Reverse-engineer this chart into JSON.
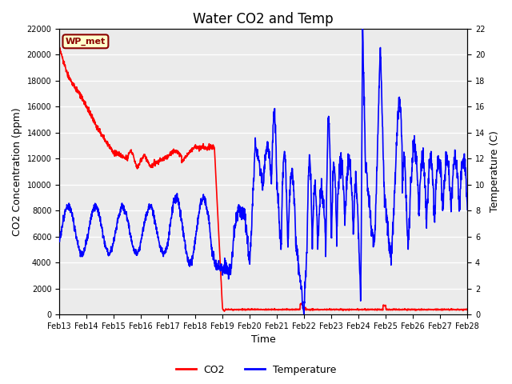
{
  "title": "Water CO2 and Temp",
  "xlabel": "Time",
  "ylabel_left": "CO2 Concentration (ppm)",
  "ylabel_right": "Temperature (C)",
  "annotation": "WP_met",
  "annotation_color": "#8B0000",
  "annotation_bg": "#FFFFCC",
  "annotation_edge": "#8B0000",
  "x_tick_labels": [
    "Feb 13",
    "Feb 14",
    "Feb 15",
    "Feb 16",
    "Feb 17",
    "Feb 18",
    "Feb 19",
    "Feb 20",
    "Feb 21",
    "Feb 22",
    "Feb 23",
    "Feb 24",
    "Feb 25",
    "Feb 26",
    "Feb 27",
    "Feb 28"
  ],
  "ylim_left": [
    0,
    22000
  ],
  "ylim_right": [
    0,
    22
  ],
  "yticks_left": [
    0,
    2000,
    4000,
    6000,
    8000,
    10000,
    12000,
    14000,
    16000,
    18000,
    20000,
    22000
  ],
  "yticks_right": [
    0,
    2,
    4,
    6,
    8,
    10,
    12,
    14,
    16,
    18,
    20,
    22
  ],
  "background_color": "#FFFFFF",
  "plot_bg_color": "#EBEBEB",
  "grid_color": "#FFFFFF",
  "co2_color": "#FF0000",
  "temp_color": "#0000FF",
  "line_width": 1.2,
  "title_fontsize": 12,
  "tick_fontsize": 7,
  "label_fontsize": 9,
  "legend_fontsize": 9
}
